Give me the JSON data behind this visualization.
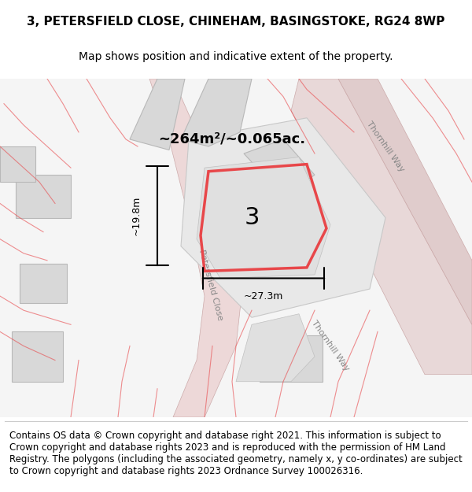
{
  "title_line1": "3, PETERSFIELD CLOSE, CHINEHAM, BASINGSTOKE, RG24 8WP",
  "title_line2": "Map shows position and indicative extent of the property.",
  "footer_text": "Contains OS data © Crown copyright and database right 2021. This information is subject to Crown copyright and database rights 2023 and is reproduced with the permission of HM Land Registry. The polygons (including the associated geometry, namely x, y co-ordinates) are subject to Crown copyright and database rights 2023 Ordnance Survey 100026316.",
  "bg_color": "#f5f5f5",
  "map_bg": "#f0f0f0",
  "plot_color": "#e8e8e8",
  "red_color": "#e8474a",
  "road_color": "#f5c8c8",
  "dark_road_color": "#e8b0b0",
  "property_number": "3",
  "area_label": "~264m²/~0.065ac.",
  "width_label": "~27.3m",
  "height_label": "~19.8m",
  "road_label1": "Thornhill Way",
  "road_label2": "Petersfield Close",
  "title_fontsize": 11,
  "subtitle_fontsize": 10,
  "footer_fontsize": 8.5
}
